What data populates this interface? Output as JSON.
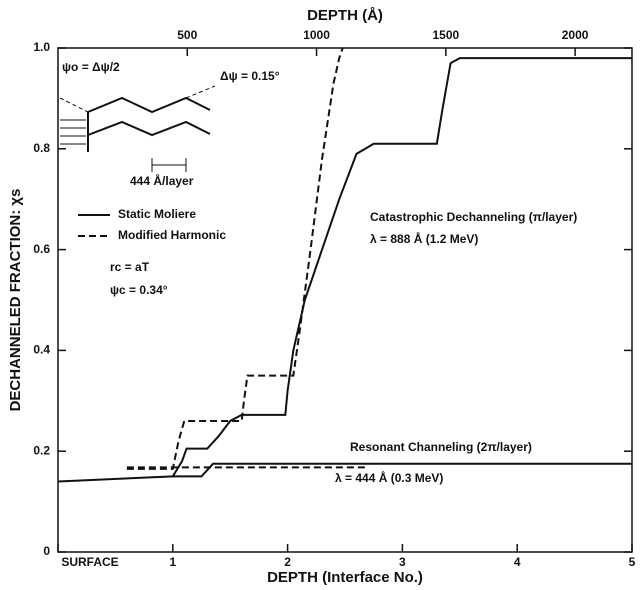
{
  "chart_data": {
    "type": "line",
    "xlabel": "DEPTH (Interface No.)",
    "x2label": "DEPTH (Å)",
    "ylabel": "DECHANNELED FRACTION: χs",
    "xlim": [
      0,
      5
    ],
    "xticks": [
      {
        "value": 0,
        "label": "SURFACE"
      },
      1,
      2,
      3,
      4,
      5
    ],
    "x2lim": [
      0,
      2220
    ],
    "x2ticks": [
      500,
      1000,
      1500,
      2000
    ],
    "ylim": [
      0,
      1
    ],
    "yticks": [
      0,
      0.2,
      0.4,
      0.6,
      0.8,
      {
        "value": 1,
        "label": "1.0"
      }
    ],
    "color": "#111111",
    "series": [
      {
        "name": "Static Moliere",
        "dash": false,
        "curves": [
          {
            "x": [
              0,
              1.0,
              1.08,
              1.12,
              1.3,
              1.4,
              1.5,
              1.6,
              1.75,
              1.98,
              2.0,
              2.05,
              2.15,
              2.3,
              2.45,
              2.6,
              2.75,
              3.3,
              3.35,
              3.42,
              3.5,
              5
            ],
            "y": [
              0.14,
              0.15,
              0.18,
              0.205,
              0.205,
              0.23,
              0.26,
              0.272,
              0.272,
              0.272,
              0.32,
              0.4,
              0.5,
              0.6,
              0.7,
              0.79,
              0.81,
              0.81,
              0.88,
              0.97,
              0.98,
              0.98
            ]
          },
          {
            "x": [
              1.0,
              1.25,
              1.35,
              5
            ],
            "y": [
              0.15,
              0.15,
              0.175,
              0.175
            ]
          }
        ]
      },
      {
        "name": "Modified Harmonic",
        "dash": true,
        "curves": [
          {
            "x": [
              0.6,
              1.0,
              1.05,
              1.1,
              1.6,
              1.62,
              1.65,
              2.05,
              2.1,
              2.2,
              2.3,
              2.4,
              2.45,
              2.48
            ],
            "y": [
              0.165,
              0.165,
              0.22,
              0.26,
              0.26,
              0.3,
              0.35,
              0.35,
              0.43,
              0.6,
              0.78,
              0.93,
              0.98,
              1.0
            ]
          },
          {
            "x": [
              0.6,
              2.7
            ],
            "y": [
              0.168,
              0.168
            ]
          }
        ]
      }
    ],
    "annotations": [
      "Catastrophic Dechanneling (π/layer)",
      "λ = 888 Å (1.2 MeV)",
      "Resonant Channeling (2π/layer)",
      "λ = 444 Å (0.3 MeV)",
      "rc = aT",
      "ψc = 0.34°",
      "ψo = Δψ/2",
      "Δψ = 0.15°",
      "444 Å/layer"
    ]
  }
}
